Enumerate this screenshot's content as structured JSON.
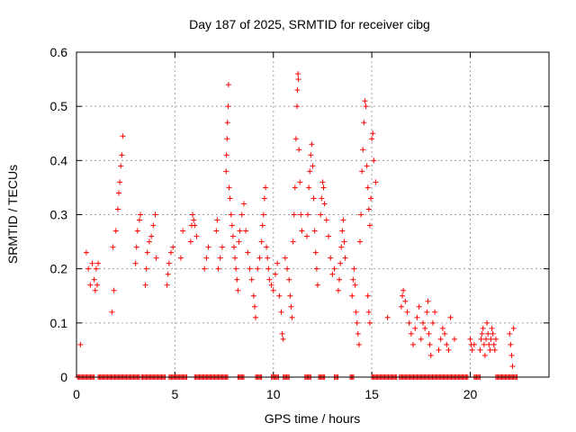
{
  "chart_data": {
    "type": "scatter",
    "title": "Day 187 of 2025, SRMTID for receiver cibg",
    "xlabel": "GPS time / hours",
    "ylabel": "SRMTID / TECUs",
    "xlim": [
      0,
      24
    ],
    "ylim": [
      0,
      0.6
    ],
    "xticks": [
      0,
      5,
      10,
      15,
      20
    ],
    "yticks": [
      0,
      0.1,
      0.2,
      0.3,
      0.4,
      0.5,
      0.6
    ],
    "xtick_labels": [
      "0",
      "5",
      "10",
      "15",
      "20"
    ],
    "ytick_labels": [
      "0",
      "0.1",
      "0.2",
      "0.3",
      "0.4",
      "0.5",
      "0.6"
    ],
    "grid": true,
    "marker": "+",
    "color": "#ff0000",
    "series": [
      {
        "name": "SRMTID",
        "points": [
          [
            0.2,
            0.06
          ],
          [
            0.5,
            0.23
          ],
          [
            0.6,
            0.2
          ],
          [
            0.7,
            0.17
          ],
          [
            0.8,
            0.21
          ],
          [
            0.9,
            0.18
          ],
          [
            0.95,
            0.16
          ],
          [
            1.0,
            0.2
          ],
          [
            1.05,
            0.17
          ],
          [
            1.1,
            0.21
          ],
          [
            1.8,
            0.12
          ],
          [
            1.85,
            0.24
          ],
          [
            1.9,
            0.16
          ],
          [
            2.0,
            0.27
          ],
          [
            2.1,
            0.31
          ],
          [
            2.15,
            0.34
          ],
          [
            2.2,
            0.36
          ],
          [
            2.25,
            0.39
          ],
          [
            2.3,
            0.41
          ],
          [
            2.35,
            0.445
          ],
          [
            3.0,
            0.21
          ],
          [
            3.05,
            0.24
          ],
          [
            3.1,
            0.27
          ],
          [
            3.2,
            0.29
          ],
          [
            3.25,
            0.3
          ],
          [
            3.5,
            0.17
          ],
          [
            3.55,
            0.2
          ],
          [
            3.6,
            0.23
          ],
          [
            3.7,
            0.25
          ],
          [
            3.8,
            0.26
          ],
          [
            3.9,
            0.28
          ],
          [
            4.0,
            0.3
          ],
          [
            4.05,
            0.22
          ],
          [
            4.6,
            0.17
          ],
          [
            4.65,
            0.19
          ],
          [
            4.7,
            0.21
          ],
          [
            4.8,
            0.23
          ],
          [
            4.9,
            0.24
          ],
          [
            5.3,
            0.22
          ],
          [
            5.4,
            0.27
          ],
          [
            5.8,
            0.25
          ],
          [
            5.85,
            0.28
          ],
          [
            5.9,
            0.3
          ],
          [
            5.95,
            0.29
          ],
          [
            6.0,
            0.28
          ],
          [
            6.1,
            0.26
          ],
          [
            6.5,
            0.2
          ],
          [
            6.6,
            0.22
          ],
          [
            6.7,
            0.24
          ],
          [
            7.1,
            0.27
          ],
          [
            7.15,
            0.29
          ],
          [
            7.2,
            0.2
          ],
          [
            7.3,
            0.22
          ],
          [
            7.4,
            0.24
          ],
          [
            7.6,
            0.38
          ],
          [
            7.62,
            0.41
          ],
          [
            7.65,
            0.44
          ],
          [
            7.67,
            0.47
          ],
          [
            7.7,
            0.5
          ],
          [
            7.72,
            0.54
          ],
          [
            7.75,
            0.35
          ],
          [
            7.8,
            0.33
          ],
          [
            7.85,
            0.3
          ],
          [
            7.9,
            0.28
          ],
          [
            7.95,
            0.26
          ],
          [
            8.0,
            0.24
          ],
          [
            8.05,
            0.22
          ],
          [
            8.1,
            0.2
          ],
          [
            8.15,
            0.18
          ],
          [
            8.2,
            0.16
          ],
          [
            8.25,
            0.25
          ],
          [
            8.3,
            0.27
          ],
          [
            8.4,
            0.3
          ],
          [
            8.5,
            0.32
          ],
          [
            8.6,
            0.27
          ],
          [
            8.7,
            0.23
          ],
          [
            8.8,
            0.2
          ],
          [
            8.9,
            0.18
          ],
          [
            9.0,
            0.15
          ],
          [
            9.05,
            0.13
          ],
          [
            9.1,
            0.11
          ],
          [
            9.2,
            0.2
          ],
          [
            9.3,
            0.22
          ],
          [
            9.4,
            0.25
          ],
          [
            9.45,
            0.28
          ],
          [
            9.5,
            0.3
          ],
          [
            9.55,
            0.33
          ],
          [
            9.6,
            0.35
          ],
          [
            9.65,
            0.24
          ],
          [
            9.7,
            0.22
          ],
          [
            9.75,
            0.2
          ],
          [
            9.8,
            0.18
          ],
          [
            9.9,
            0.17
          ],
          [
            10.0,
            0.16
          ],
          [
            10.1,
            0.19
          ],
          [
            10.2,
            0.21
          ],
          [
            10.3,
            0.15
          ],
          [
            10.4,
            0.12
          ],
          [
            10.45,
            0.08
          ],
          [
            10.5,
            0.07
          ],
          [
            10.6,
            0.22
          ],
          [
            10.7,
            0.2
          ],
          [
            10.8,
            0.18
          ],
          [
            10.85,
            0.15
          ],
          [
            10.9,
            0.13
          ],
          [
            10.95,
            0.11
          ],
          [
            11.0,
            0.25
          ],
          [
            11.05,
            0.3
          ],
          [
            11.1,
            0.35
          ],
          [
            11.15,
            0.44
          ],
          [
            11.2,
            0.5
          ],
          [
            11.22,
            0.53
          ],
          [
            11.25,
            0.56
          ],
          [
            11.27,
            0.55
          ],
          [
            11.3,
            0.42
          ],
          [
            11.35,
            0.36
          ],
          [
            11.4,
            0.3
          ],
          [
            11.45,
            0.27
          ],
          [
            11.7,
            0.26
          ],
          [
            11.75,
            0.3
          ],
          [
            11.8,
            0.35
          ],
          [
            11.85,
            0.38
          ],
          [
            11.9,
            0.41
          ],
          [
            11.95,
            0.43
          ],
          [
            12.0,
            0.39
          ],
          [
            12.05,
            0.33
          ],
          [
            12.1,
            0.27
          ],
          [
            12.15,
            0.23
          ],
          [
            12.2,
            0.2
          ],
          [
            12.25,
            0.17
          ],
          [
            12.4,
            0.3
          ],
          [
            12.45,
            0.33
          ],
          [
            12.5,
            0.36
          ],
          [
            12.55,
            0.35
          ],
          [
            12.6,
            0.32
          ],
          [
            12.7,
            0.29
          ],
          [
            12.8,
            0.26
          ],
          [
            12.9,
            0.22
          ],
          [
            13.0,
            0.19
          ],
          [
            13.1,
            0.2
          ],
          [
            13.3,
            0.16
          ],
          [
            13.35,
            0.18
          ],
          [
            13.4,
            0.21
          ],
          [
            13.45,
            0.24
          ],
          [
            13.5,
            0.27
          ],
          [
            13.55,
            0.29
          ],
          [
            13.6,
            0.25
          ],
          [
            13.65,
            0.22
          ],
          [
            14.0,
            0.15
          ],
          [
            14.05,
            0.18
          ],
          [
            14.1,
            0.2
          ],
          [
            14.15,
            0.17
          ],
          [
            14.2,
            0.12
          ],
          [
            14.25,
            0.1
          ],
          [
            14.3,
            0.08
          ],
          [
            14.35,
            0.06
          ],
          [
            14.4,
            0.25
          ],
          [
            14.45,
            0.3
          ],
          [
            14.5,
            0.38
          ],
          [
            14.55,
            0.42
          ],
          [
            14.6,
            0.47
          ],
          [
            14.65,
            0.51
          ],
          [
            14.7,
            0.5
          ],
          [
            14.75,
            0.39
          ],
          [
            14.8,
            0.35
          ],
          [
            14.85,
            0.31
          ],
          [
            14.9,
            0.28
          ],
          [
            14.95,
            0.33
          ],
          [
            15.0,
            0.44
          ],
          [
            15.05,
            0.45
          ],
          [
            15.1,
            0.4
          ],
          [
            15.2,
            0.36
          ],
          [
            14.8,
            0.15
          ],
          [
            14.85,
            0.12
          ],
          [
            14.9,
            0.1
          ],
          [
            15.8,
            0.11
          ],
          [
            16.5,
            0.13
          ],
          [
            16.55,
            0.15
          ],
          [
            16.6,
            0.16
          ],
          [
            16.7,
            0.14
          ],
          [
            16.8,
            0.12
          ],
          [
            16.9,
            0.1
          ],
          [
            17.0,
            0.08
          ],
          [
            17.1,
            0.06
          ],
          [
            17.2,
            0.09
          ],
          [
            17.3,
            0.11
          ],
          [
            17.4,
            0.13
          ],
          [
            17.5,
            0.07
          ],
          [
            17.6,
            0.1
          ],
          [
            17.7,
            0.09
          ],
          [
            17.8,
            0.12
          ],
          [
            17.85,
            0.14
          ],
          [
            17.9,
            0.08
          ],
          [
            17.95,
            0.06
          ],
          [
            18.0,
            0.04
          ],
          [
            18.1,
            0.1
          ],
          [
            18.2,
            0.12
          ],
          [
            18.4,
            0.05
          ],
          [
            18.5,
            0.07
          ],
          [
            18.6,
            0.09
          ],
          [
            18.7,
            0.08
          ],
          [
            18.8,
            0.06
          ],
          [
            18.9,
            0.05
          ],
          [
            19.0,
            0.11
          ],
          [
            19.2,
            0.07
          ],
          [
            20.0,
            0.07
          ],
          [
            20.05,
            0.06
          ],
          [
            20.1,
            0.05
          ],
          [
            20.2,
            0.06
          ],
          [
            20.5,
            0.05
          ],
          [
            20.55,
            0.07
          ],
          [
            20.6,
            0.08
          ],
          [
            20.65,
            0.09
          ],
          [
            20.7,
            0.06
          ],
          [
            20.75,
            0.04
          ],
          [
            20.8,
            0.07
          ],
          [
            20.85,
            0.1
          ],
          [
            20.9,
            0.08
          ],
          [
            20.95,
            0.06
          ],
          [
            21.0,
            0.05
          ],
          [
            21.05,
            0.07
          ],
          [
            21.1,
            0.09
          ],
          [
            21.15,
            0.08
          ],
          [
            21.2,
            0.06
          ],
          [
            21.25,
            0.05
          ],
          [
            21.3,
            0.07
          ],
          [
            22.0,
            0.08
          ],
          [
            22.05,
            0.06
          ],
          [
            22.1,
            0.04
          ],
          [
            22.15,
            0.02
          ],
          [
            22.2,
            0.09
          ]
        ]
      },
      {
        "name": "SRMTID zero",
        "zero_ranges": [
          [
            0.05,
            0.9
          ],
          [
            1.1,
            3.2
          ],
          [
            3.3,
            4.5
          ],
          [
            4.7,
            5.6
          ],
          [
            6.0,
            7.7
          ],
          [
            8.2,
            8.5
          ],
          [
            9.1,
            9.4
          ],
          [
            9.9,
            10.3
          ],
          [
            10.5,
            10.8
          ],
          [
            11.6,
            11.9
          ],
          [
            12.3,
            12.6
          ],
          [
            13.1,
            13.3
          ],
          [
            13.9,
            14.1
          ],
          [
            15.0,
            16.3
          ],
          [
            16.4,
            19.9
          ],
          [
            20.2,
            20.5
          ],
          [
            21.3,
            22.4
          ]
        ]
      }
    ]
  }
}
